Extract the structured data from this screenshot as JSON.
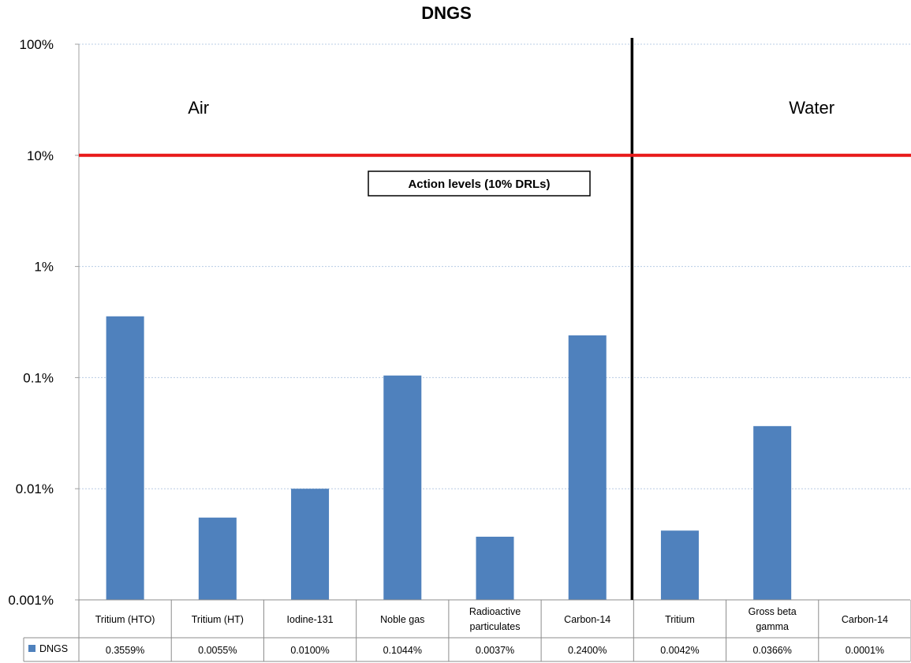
{
  "chart_data": {
    "type": "bar",
    "title": "DNGS",
    "y_scale": "log",
    "ylim": [
      0.001,
      100
    ],
    "y_ticks": [
      {
        "value": 100,
        "label": "100%"
      },
      {
        "value": 10,
        "label": "10%"
      },
      {
        "value": 1,
        "label": "1%"
      },
      {
        "value": 0.1,
        "label": "0.1%"
      },
      {
        "value": 0.01,
        "label": "0.01%"
      },
      {
        "value": 0.001,
        "label": "0.001%"
      }
    ],
    "grid": true,
    "categories": [
      [
        "Tritium (HTO)"
      ],
      [
        "Tritium (HT)"
      ],
      [
        "Iodine-131"
      ],
      [
        "Noble gas"
      ],
      [
        "Radioactive",
        "particulates"
      ],
      [
        "Carbon-14"
      ],
      [
        "Tritium"
      ],
      [
        "Gross beta",
        "gamma"
      ],
      [
        "Carbon-14"
      ]
    ],
    "series": [
      {
        "name": "DNGS",
        "color": "#4f81bd",
        "values": [
          0.3559,
          0.0055,
          0.01,
          0.1044,
          0.0037,
          0.24,
          0.0042,
          0.0366,
          0.0001
        ],
        "value_labels": [
          "0.3559%",
          "0.0055%",
          "0.0100%",
          "0.1044%",
          "0.0037%",
          "0.2400%",
          "0.0042%",
          "0.0366%",
          "0.0001%"
        ]
      }
    ],
    "legend": "data-table-left",
    "regions": [
      {
        "label": "Air",
        "categories": [
          0,
          5
        ]
      },
      {
        "label": "Water",
        "categories": [
          6,
          8
        ]
      }
    ],
    "reference_line": {
      "value": 10,
      "color": "#e81a1a",
      "label": "Action levels (10% DRLs)"
    }
  }
}
